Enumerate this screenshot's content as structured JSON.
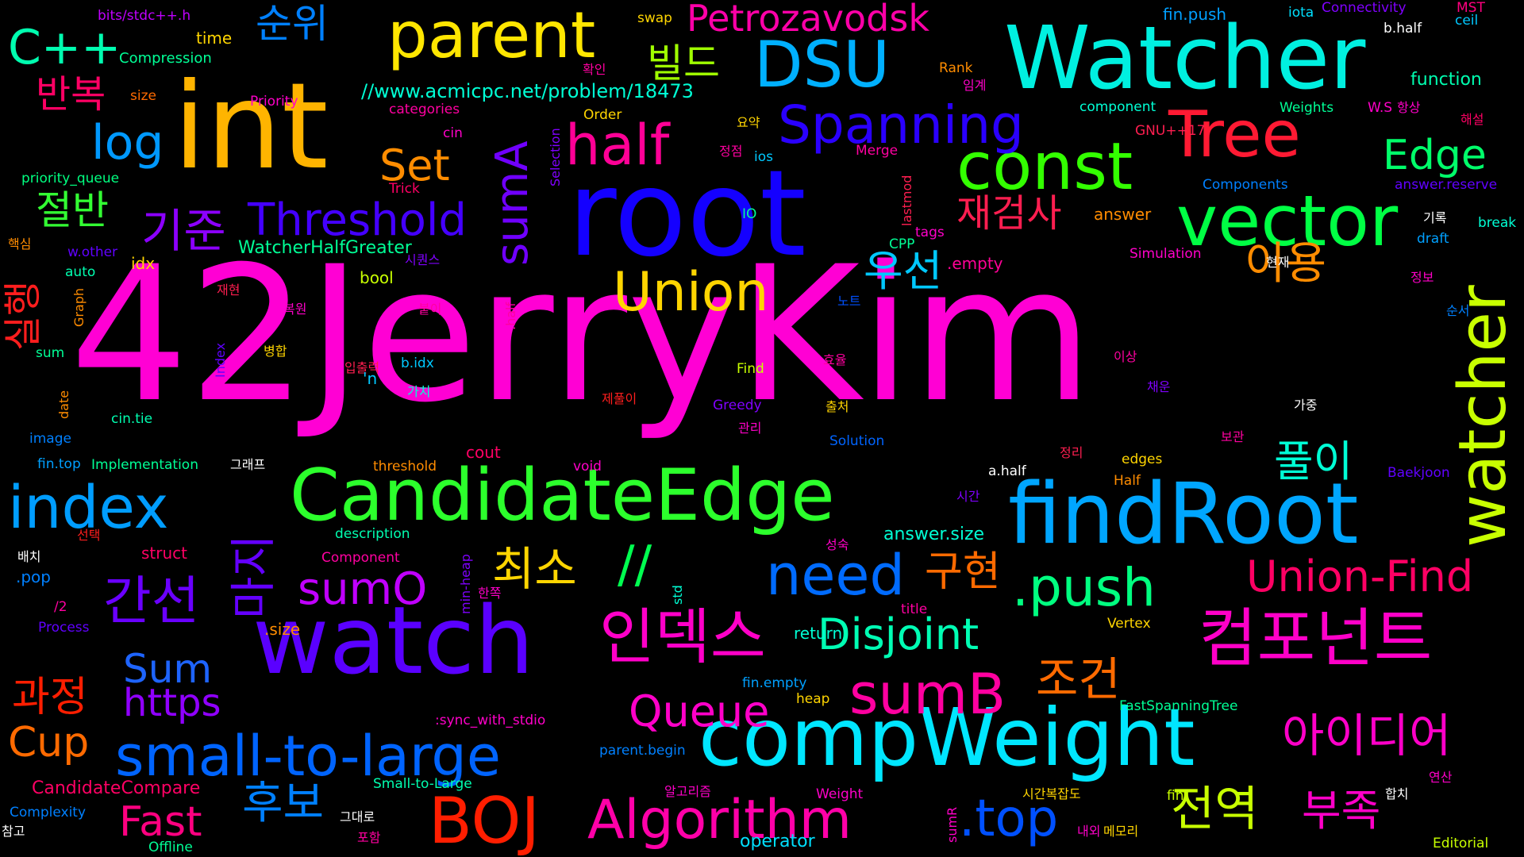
{
  "words": [
    {
      "text": "42JerryKim",
      "color": "#ff00d4"
    },
    {
      "text": "int",
      "color": "#ffb400"
    },
    {
      "text": "root",
      "color": "#1400ff"
    },
    {
      "text": "Watcher",
      "color": "#00f0e0"
    },
    {
      "text": "watch",
      "color": "#5a00ff"
    },
    {
      "text": "findRoot",
      "color": "#00a6ff"
    },
    {
      "text": "compWeight",
      "color": "#00e6ff"
    },
    {
      "text": "CandidateEdge",
      "color": "#2cff2c"
    },
    {
      "text": "vector",
      "color": "#00ff44"
    },
    {
      "text": "const",
      "color": "#33ff00"
    },
    {
      "text": "watcher",
      "color": "#c8ff00"
    },
    {
      "text": "parent",
      "color": "#ffe600"
    },
    {
      "text": "Tree",
      "color": "#ff1a33"
    },
    {
      "text": "DSU",
      "color": "#00b0ff"
    },
    {
      "text": "컴포넌트",
      "color": "#ff00c8"
    },
    {
      "text": "index",
      "color": "#009dff"
    },
    {
      "text": "small-to-large",
      "color": "#0064ff"
    },
    {
      "text": "BOJ",
      "color": "#ff1e00"
    },
    {
      "text": "Algorithm",
      "color": "#ff00a8"
    },
    {
      "text": "인덱스",
      "color": "#ff00c8"
    },
    {
      "text": "Union",
      "color": "#ffd500"
    },
    {
      "text": "Spanning",
      "color": "#2a00ff"
    },
    {
      "text": "half",
      "color": "#ff0096"
    },
    {
      "text": "sumB",
      "color": "#ff00a0"
    },
    {
      "text": "need",
      "color": "#006bff"
    },
    {
      "text": ".push",
      "color": "#00ff80"
    },
    {
      "text": "간선",
      "color": "#6a00ff"
    },
    {
      "text": "Edge",
      "color": "#00ff6a"
    },
    {
      "text": "C++",
      "color": "#00ffb0"
    },
    {
      "text": "log",
      "color": "#0099ff"
    },
    {
      "text": "Threshold",
      "color": "#4400ff"
    },
    {
      "text": "sumA",
      "color": "#7000ff"
    },
    {
      "text": "Set",
      "color": "#ff8c00"
    },
    {
      "text": "Petrozavodsk",
      "color": "#ff00a8"
    },
    {
      "text": "빌드",
      "color": "#a0ff00"
    },
    {
      "text": "순위",
      "color": "#0080ff"
    },
    {
      "text": "재검사",
      "color": "#ff1e50"
    },
    {
      "text": "우선",
      "color": "#00c8ff"
    },
    {
      "text": "이용",
      "color": "#ff8c00"
    },
    {
      "text": "최소",
      "color": "#ffd500"
    },
    {
      "text": "//",
      "color": "#00ff50"
    },
    {
      "text": "sumO",
      "color": "#c000ff"
    },
    {
      "text": "Disjoint",
      "color": "#00ffb4"
    },
    {
      "text": "Union-Find",
      "color": "#ff0064"
    },
    {
      "text": "구현",
      "color": "#ff6a00"
    },
    {
      "text": "조건",
      "color": "#ff6a00"
    },
    {
      "text": "풀이",
      "color": "#00ffd5"
    },
    {
      "text": "아이디어",
      "color": "#ff00c8"
    },
    {
      "text": "전역",
      "color": "#c8ff00"
    },
    {
      "text": "부족",
      "color": "#ff00c8"
    },
    {
      "text": ".top",
      "color": "#0050ff"
    },
    {
      "text": "Queue",
      "color": "#ff00c8"
    },
    {
      "text": "후보",
      "color": "#0080ff"
    },
    {
      "text": "Fast",
      "color": "#ff0080"
    },
    {
      "text": "Cup",
      "color": "#ff6a00"
    },
    {
      "text": "https",
      "color": "#9000ff"
    },
    {
      "text": "Sum",
      "color": "#1e64ff"
    },
    {
      "text": "과정",
      "color": "#ff1e00"
    },
    {
      "text": "반복",
      "color": "#ff0064"
    },
    {
      "text": "절반",
      "color": "#33ff33"
    },
    {
      "text": "기준",
      "color": "#8c00ff"
    },
    {
      "text": "실행",
      "color": "#ff1e1e"
    },
    {
      "text": "마지",
      "color": "#6400ff"
    },
    {
      "text": "//www.acmicpc.net/problem/18473",
      "color": "#00ffd5"
    },
    {
      "text": "WatcherHalfGreater",
      "color": "#00ff96"
    },
    {
      "text": "bits/stdc++.h",
      "color": "#c000ff"
    },
    {
      "text": "Compression",
      "color": "#00ff96"
    },
    {
      "text": "time",
      "color": "#ffd500"
    },
    {
      "text": "size",
      "color": "#ff6a00"
    },
    {
      "text": "Priority",
      "color": "#ff00c8"
    },
    {
      "text": "categories",
      "color": "#ff00a0"
    },
    {
      "text": "cin",
      "color": "#ff00c8"
    },
    {
      "text": "Order",
      "color": "#ffd500"
    },
    {
      "text": "확인",
      "color": "#ff00a0"
    },
    {
      "text": "swap",
      "color": "#ffd500"
    },
    {
      "text": "fin.push",
      "color": "#00a0ff"
    },
    {
      "text": "iota",
      "color": "#00e0ff"
    },
    {
      "text": "Connectivity",
      "color": "#8000ff"
    },
    {
      "text": "MST",
      "color": "#ff0080"
    },
    {
      "text": "ceil",
      "color": "#00c8ff"
    },
    {
      "text": "b.half",
      "color": "#ffffff"
    },
    {
      "text": "Rank",
      "color": "#ff8c00"
    },
    {
      "text": "임계",
      "color": "#ff00c8"
    },
    {
      "text": "function",
      "color": "#00ffb0"
    },
    {
      "text": "component",
      "color": "#00ffd5"
    },
    {
      "text": "Weights",
      "color": "#00ff96"
    },
    {
      "text": "W.S",
      "color": "#ff00c8"
    },
    {
      "text": "항상",
      "color": "#ff00c8"
    },
    {
      "text": "해설",
      "color": "#ff0064"
    },
    {
      "text": "GNU++17",
      "color": "#ff1e50"
    },
    {
      "text": "Components",
      "color": "#0080ff"
    },
    {
      "text": "answer.reserve",
      "color": "#6000ff"
    },
    {
      "text": "break",
      "color": "#00ffd5"
    },
    {
      "text": "기록",
      "color": "#ffffff"
    },
    {
      "text": "draft",
      "color": "#00a0ff"
    },
    {
      "text": "요약",
      "color": "#ffd500"
    },
    {
      "text": "정점",
      "color": "#ff00a0"
    },
    {
      "text": "ios",
      "color": "#00c8ff"
    },
    {
      "text": "Merge",
      "color": "#ff00a0"
    },
    {
      "text": "Trick",
      "color": "#ff0064"
    },
    {
      "text": "priority_queue",
      "color": "#00ff80"
    },
    {
      "text": "Selection",
      "color": "#8000ff"
    },
    {
      "text": "IO",
      "color": "#00ff96"
    },
    {
      "text": "CPP",
      "color": "#00ff96"
    },
    {
      "text": "tags",
      "color": "#ff00c8"
    },
    {
      "text": "lastmod",
      "color": "#ff1e50"
    },
    {
      "text": "answer",
      "color": "#ff8c00"
    },
    {
      "text": ".empty",
      "color": "#ff0096"
    },
    {
      "text": "Simulation",
      "color": "#ff00c8"
    },
    {
      "text": "현재",
      "color": "#ffffff"
    },
    {
      "text": "정보",
      "color": "#ff00c8"
    },
    {
      "text": "핵심",
      "color": "#ff8c00"
    },
    {
      "text": "w.other",
      "color": "#6000ff"
    },
    {
      "text": "auto",
      "color": "#00ffb0"
    },
    {
      "text": "idx",
      "color": "#ffd500"
    },
    {
      "text": "bool",
      "color": "#c8ff00"
    },
    {
      "text": "재현",
      "color": "#ff1e50"
    },
    {
      "text": "시퀀스",
      "color": "#8000ff"
    },
    {
      "text": "붙이",
      "color": "#ff00a0"
    },
    {
      "text": "노트",
      "color": "#0050ff"
    },
    {
      "text": "순서",
      "color": "#0080ff"
    },
    {
      "text": "Graph",
      "color": "#ff8c00"
    },
    {
      "text": "복원",
      "color": "#ff00c8"
    },
    {
      "text": ".half",
      "color": "#ff00a0"
    },
    {
      "text": "Index",
      "color": "#6000ff"
    },
    {
      "text": "sum",
      "color": "#00ff96"
    },
    {
      "text": "병합",
      "color": "#ffd500"
    },
    {
      "text": "입출력",
      "color": "#ff1e50"
    },
    {
      "text": "b.idx",
      "color": "#00c8ff"
    },
    {
      "text": "효율",
      "color": "#ff00a0"
    },
    {
      "text": "이상",
      "color": "#ff00a0"
    },
    {
      "text": "Find",
      "color": "#c8ff00"
    },
    {
      "text": "가치",
      "color": "#00ffd5"
    },
    {
      "text": "'n",
      "color": "#00c8ff"
    },
    {
      "text": "채운",
      "color": "#8000ff"
    },
    {
      "text": "date",
      "color": "#ff8c00"
    },
    {
      "text": "제풀이",
      "color": "#ff1e1e"
    },
    {
      "text": "Greedy",
      "color": "#8000ff"
    },
    {
      "text": "출처",
      "color": "#ffd500"
    },
    {
      "text": "가중",
      "color": "#ffffff"
    },
    {
      "text": "cin.tie",
      "color": "#00ffb0"
    },
    {
      "text": "관리",
      "color": "#ff00c8"
    },
    {
      "text": "image",
      "color": "#0080ff"
    },
    {
      "text": "Solution",
      "color": "#0064ff"
    },
    {
      "text": "보관",
      "color": "#ff00a0"
    },
    {
      "text": "정리",
      "color": "#ff1e50"
    },
    {
      "text": "그래프",
      "color": "#ffffff"
    },
    {
      "text": "fin.top",
      "color": "#00a0ff"
    },
    {
      "text": "Implementation",
      "color": "#00ff96"
    },
    {
      "text": "threshold",
      "color": "#ff8c00"
    },
    {
      "text": "void",
      "color": "#ff00c8"
    },
    {
      "text": "cout",
      "color": "#ff0064"
    },
    {
      "text": "edges",
      "color": "#ffd500"
    },
    {
      "text": "a.half",
      "color": "#ffffff"
    },
    {
      "text": "Baekjoon",
      "color": "#6000ff"
    },
    {
      "text": "Half",
      "color": "#ff8c00"
    },
    {
      "text": "시간",
      "color": "#8000ff"
    },
    {
      "text": "description",
      "color": "#00ffb0"
    },
    {
      "text": "answer.size",
      "color": "#00ffd5"
    },
    {
      "text": "선택",
      "color": "#ff1e1e"
    },
    {
      "text": "배치",
      "color": "#ffffff"
    },
    {
      "text": "struct",
      "color": "#ff0064"
    },
    {
      "text": "min-heap",
      "color": "#8000ff"
    },
    {
      "text": "Component",
      "color": "#ff00a0"
    },
    {
      "text": "성숙",
      "color": "#ff00c8"
    },
    {
      "text": ".pop",
      "color": "#0080ff"
    },
    {
      "text": "한쪽",
      "color": "#ff00c8"
    },
    {
      "text": "std",
      "color": "#00ffd5"
    },
    {
      "text": "/2",
      "color": "#ff00a0"
    },
    {
      "text": "title",
      "color": "#ff00a0"
    },
    {
      "text": "Vertex",
      "color": "#ffd500"
    },
    {
      "text": "Process",
      "color": "#6000ff"
    },
    {
      "text": ".size",
      "color": "#ff8c00"
    },
    {
      "text": "return",
      "color": "#00ffd5"
    },
    {
      "text": "fin.empty",
      "color": "#00a0ff"
    },
    {
      "text": "heap",
      "color": "#ffd500"
    },
    {
      "text": "FastSpanningTree",
      "color": "#00ff96"
    },
    {
      "text": ":sync_with_stdio",
      "color": "#ff00c8"
    },
    {
      "text": "parent.begin",
      "color": "#0080ff"
    },
    {
      "text": "CandidateCompare",
      "color": "#ff0064"
    },
    {
      "text": "Small-to-Large",
      "color": "#00ffb0"
    },
    {
      "text": "알고리즘",
      "color": "#ff00c8"
    },
    {
      "text": "Weight",
      "color": "#ff00c8"
    },
    {
      "text": "연산",
      "color": "#ff00c8"
    },
    {
      "text": "합치",
      "color": "#ffffff"
    },
    {
      "text": "Complexity",
      "color": "#0080ff"
    },
    {
      "text": "sumR",
      "color": "#ff00c8"
    },
    {
      "text": "시간복잡도",
      "color": "#ffd500"
    },
    {
      "text": "fin",
      "color": "#c8ff00"
    },
    {
      "text": "참고",
      "color": "#ffffff"
    },
    {
      "text": "그대로",
      "color": "#ffffff"
    },
    {
      "text": "포함",
      "color": "#ff00a0"
    },
    {
      "text": "Offline",
      "color": "#00ff96"
    },
    {
      "text": "operator",
      "color": "#00e0ff"
    },
    {
      "text": "내외",
      "color": "#ff00c8"
    },
    {
      "text": "메모리",
      "color": "#ffd500"
    },
    {
      "text": "Editorial",
      "color": "#c8ff00"
    }
  ]
}
